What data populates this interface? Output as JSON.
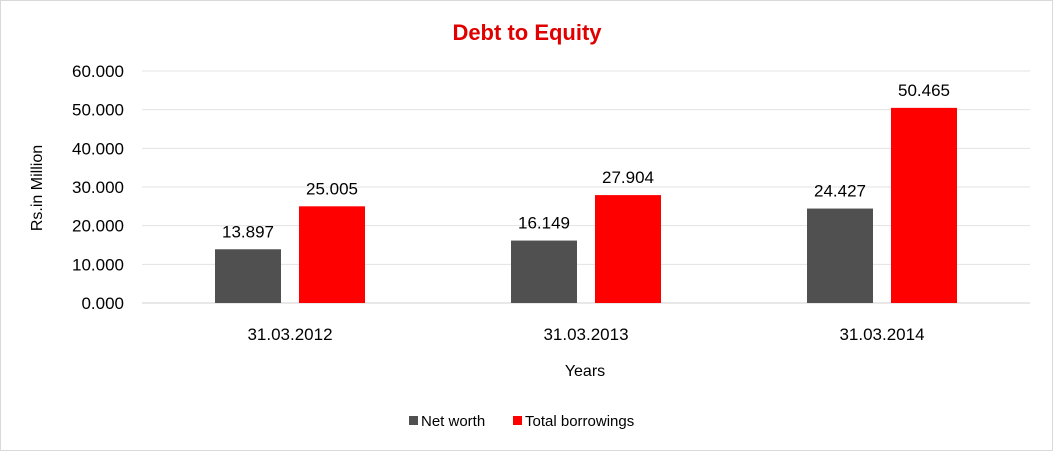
{
  "chart_data": {
    "type": "bar",
    "title": "Debt to Equity",
    "xlabel": "Years",
    "ylabel": "Rs.in Million",
    "categories": [
      "31.03.2012",
      "31.03.2013",
      "31.03.2014"
    ],
    "series": [
      {
        "name": "Net worth",
        "values": [
          13.897,
          16.149,
          24.427
        ],
        "value_labels": [
          "13.897",
          "16.149",
          "24.427"
        ],
        "color": "#505050"
      },
      {
        "name": "Total borrowings",
        "values": [
          25.005,
          27.904,
          50.465
        ],
        "value_labels": [
          "25.005",
          "27.904",
          "50.465"
        ],
        "color": "#ff0000"
      }
    ],
    "ylim": [
      0,
      60
    ],
    "yticks": [
      0,
      10,
      20,
      30,
      40,
      50,
      60
    ],
    "ytick_labels": [
      "0.000",
      "10.000",
      "20.000",
      "30.000",
      "40.000",
      "50.000",
      "60.000"
    ],
    "grid": true,
    "legend_position": "bottom",
    "title_color": "#e00000"
  }
}
